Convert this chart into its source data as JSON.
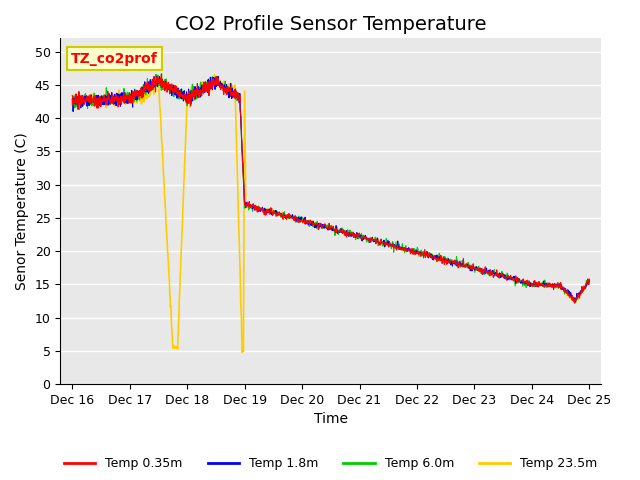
{
  "title": "CO2 Profile Sensor Temperature",
  "ylabel": "Senor Temperature (C)",
  "xlabel": "Time",
  "annotation_text": "TZ_co2prof",
  "annotation_bg": "#ffffcc",
  "annotation_border": "#cccc00",
  "ylim": [
    0,
    52
  ],
  "yticks": [
    0,
    5,
    10,
    15,
    20,
    25,
    30,
    35,
    40,
    45,
    50
  ],
  "background_color": "#e8e8e8",
  "grid_color": "#ffffff",
  "series": [
    {
      "label": "Temp 0.35m",
      "color": "#ff0000"
    },
    {
      "label": "Temp 1.8m",
      "color": "#0000ff"
    },
    {
      "label": "Temp 6.0m",
      "color": "#00cc00"
    },
    {
      "label": "Temp 23.5m",
      "color": "#ffcc00"
    }
  ],
  "xtick_labels": [
    "Dec 16",
    "Dec 17",
    "Dec 18",
    "Dec 19",
    "Dec 20",
    "Dec 21",
    "Dec 22",
    "Dec 23",
    "Dec 24",
    "Dec 25"
  ],
  "title_fontsize": 14,
  "label_fontsize": 10,
  "tick_fontsize": 9
}
